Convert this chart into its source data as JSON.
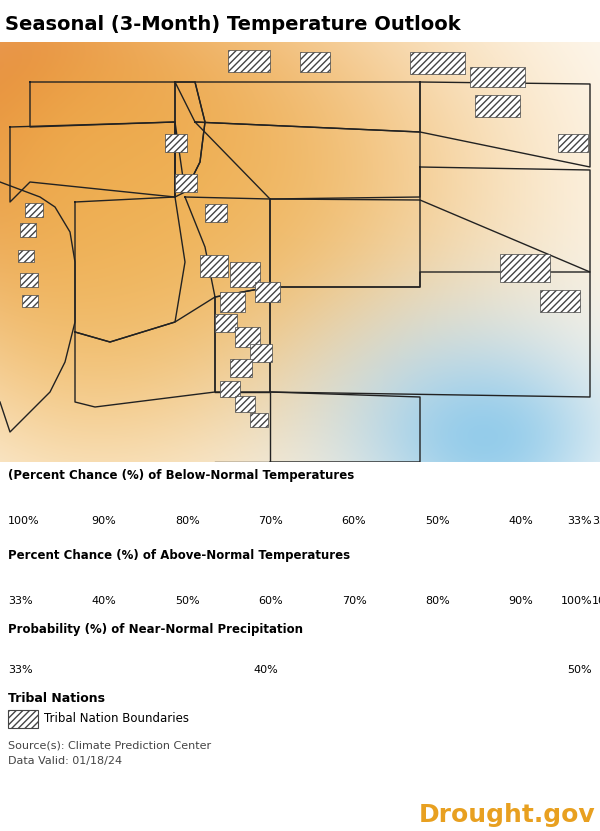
{
  "title": "Seasonal (3-Month) Temperature Outlook",
  "background_color": "#ffffff",
  "title_fontsize": 14,
  "title_fontweight": "bold",
  "below_normal_colors": [
    "#0a0a4a",
    "#1a1a6e",
    "#2e3d8e",
    "#1e6eb5",
    "#3399d5",
    "#6bbde8",
    "#a8d5f0"
  ],
  "below_normal_labels": [
    "100%",
    "90%",
    "80%",
    "70%",
    "60%",
    "50%",
    "40%",
    "33%"
  ],
  "above_normal_colors": [
    "#e8b870",
    "#e07830",
    "#d04015",
    "#b8152a",
    "#9c1040",
    "#7a0830",
    "#500018"
  ],
  "above_normal_labels": [
    "33%",
    "40%",
    "50%",
    "60%",
    "70%",
    "80%",
    "90%",
    "100%"
  ],
  "precip_colors": [
    "#d0d0d0",
    "#a0a0a0"
  ],
  "precip_labels": [
    "33%",
    "40%",
    "50%"
  ],
  "below_normal_title": "(Percent Chance (%) of Below-Normal Temperatures",
  "above_normal_title": "Percent Chance (%) of Above-Normal Temperatures",
  "precip_title": "Probability (%) of Near-Normal Precipitation",
  "tribal_title": "Tribal Nations",
  "tribal_label": "Tribal Nation Boundaries",
  "source_text": "Source(s): Climate Prediction Center",
  "data_valid": "Data Valid: 01/18/24",
  "drought_gov_text": "Drought.gov",
  "drought_gov_color": "#e8a020"
}
